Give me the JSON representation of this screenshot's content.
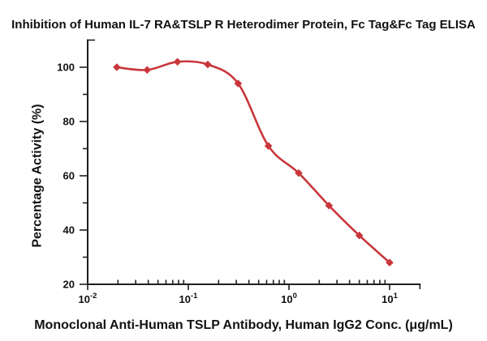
{
  "chart_data": {
    "type": "line",
    "title": "Inhibition of Human IL-7 RA&TSLP R Heterodimer Protein, Fc Tag&Fc Tag ELISA",
    "xlabel": "Monoclonal Anti-Human TSLP Antibody, Human IgG2 Conc. (μg/mL)",
    "ylabel": "Percentage Activity (%)",
    "x_scale": "log",
    "x_range": [
      0.01,
      20
    ],
    "y_range": [
      20,
      110
    ],
    "grid": false,
    "legend_position": "none",
    "x_major_ticks": [
      {
        "base": "10",
        "exp": "-2",
        "value": 0.01
      },
      {
        "base": "10",
        "exp": "-1",
        "value": 0.1
      },
      {
        "base": "10",
        "exp": "0",
        "value": 1
      },
      {
        "base": "10",
        "exp": "1",
        "value": 10
      }
    ],
    "y_major_ticks": [
      20,
      40,
      60,
      80,
      100
    ],
    "y_minor_ticks": [
      30,
      50,
      70,
      90,
      110
    ],
    "series": [
      {
        "name": "Monoclonal Anti-Human TSLP Antibody, Human IgG2",
        "marker": "diamond",
        "color": "#c8373b",
        "x": [
          0.0195,
          0.039,
          0.078,
          0.156,
          0.3125,
          0.625,
          1.25,
          2.5,
          5,
          10
        ],
        "y": [
          100,
          99,
          102,
          101,
          94,
          71,
          61,
          49,
          38,
          28
        ]
      }
    ]
  },
  "colors": {
    "curve": "#c8373b",
    "axis": "#1f1f1f",
    "text": "#111111",
    "background": "#ffffff"
  }
}
